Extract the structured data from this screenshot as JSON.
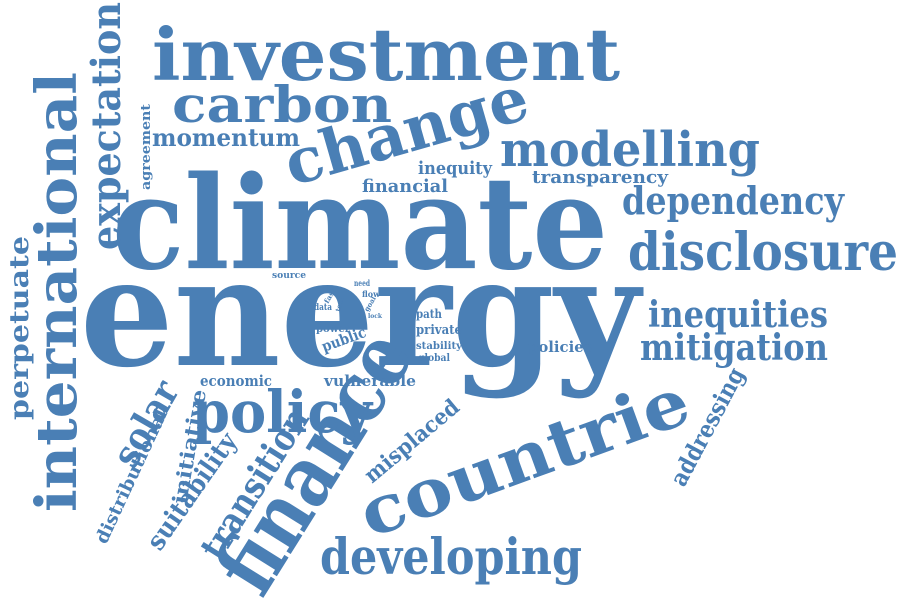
{
  "word_color": "#4a7fb5",
  "background": "#ffffff",
  "words": {
    "climate": "climate",
    "energy": "energy",
    "investment": "investment",
    "carbon": "carbon",
    "change": "change",
    "modelling": "modelling",
    "dependency": "dependency",
    "disclosure": "disclosure",
    "inequities": "inequities",
    "mitigation": "mitigation",
    "countrie": "countrie",
    "finance": "finance",
    "developing": "developing",
    "policy": "policy",
    "international": "international",
    "expectation": "expectation",
    "momentum": "momentum",
    "solar": "solar",
    "transition": "transition",
    "perpetuate": "perpetuate",
    "addressing": "addressing",
    "inequity": "inequity",
    "financial": "financial",
    "transparency": "transparency",
    "agreement": "agreement",
    "misplaced": "misplaced",
    "suitability": "suitability",
    "initiative": "initiative",
    "distributional": "distributional",
    "vulnerable": "vulnerable",
    "economic": "economic",
    "public": "public",
    "power": "power",
    "path": "path",
    "private": "private",
    "stability": "stability",
    "global": "global",
    "policies": "policies",
    "source": "source",
    "need": "need",
    "flow": "flow",
    "goal": "goal",
    "lock": "lock",
    "data": "data",
    "fast": "fast",
    "tool": "tool"
  }
}
